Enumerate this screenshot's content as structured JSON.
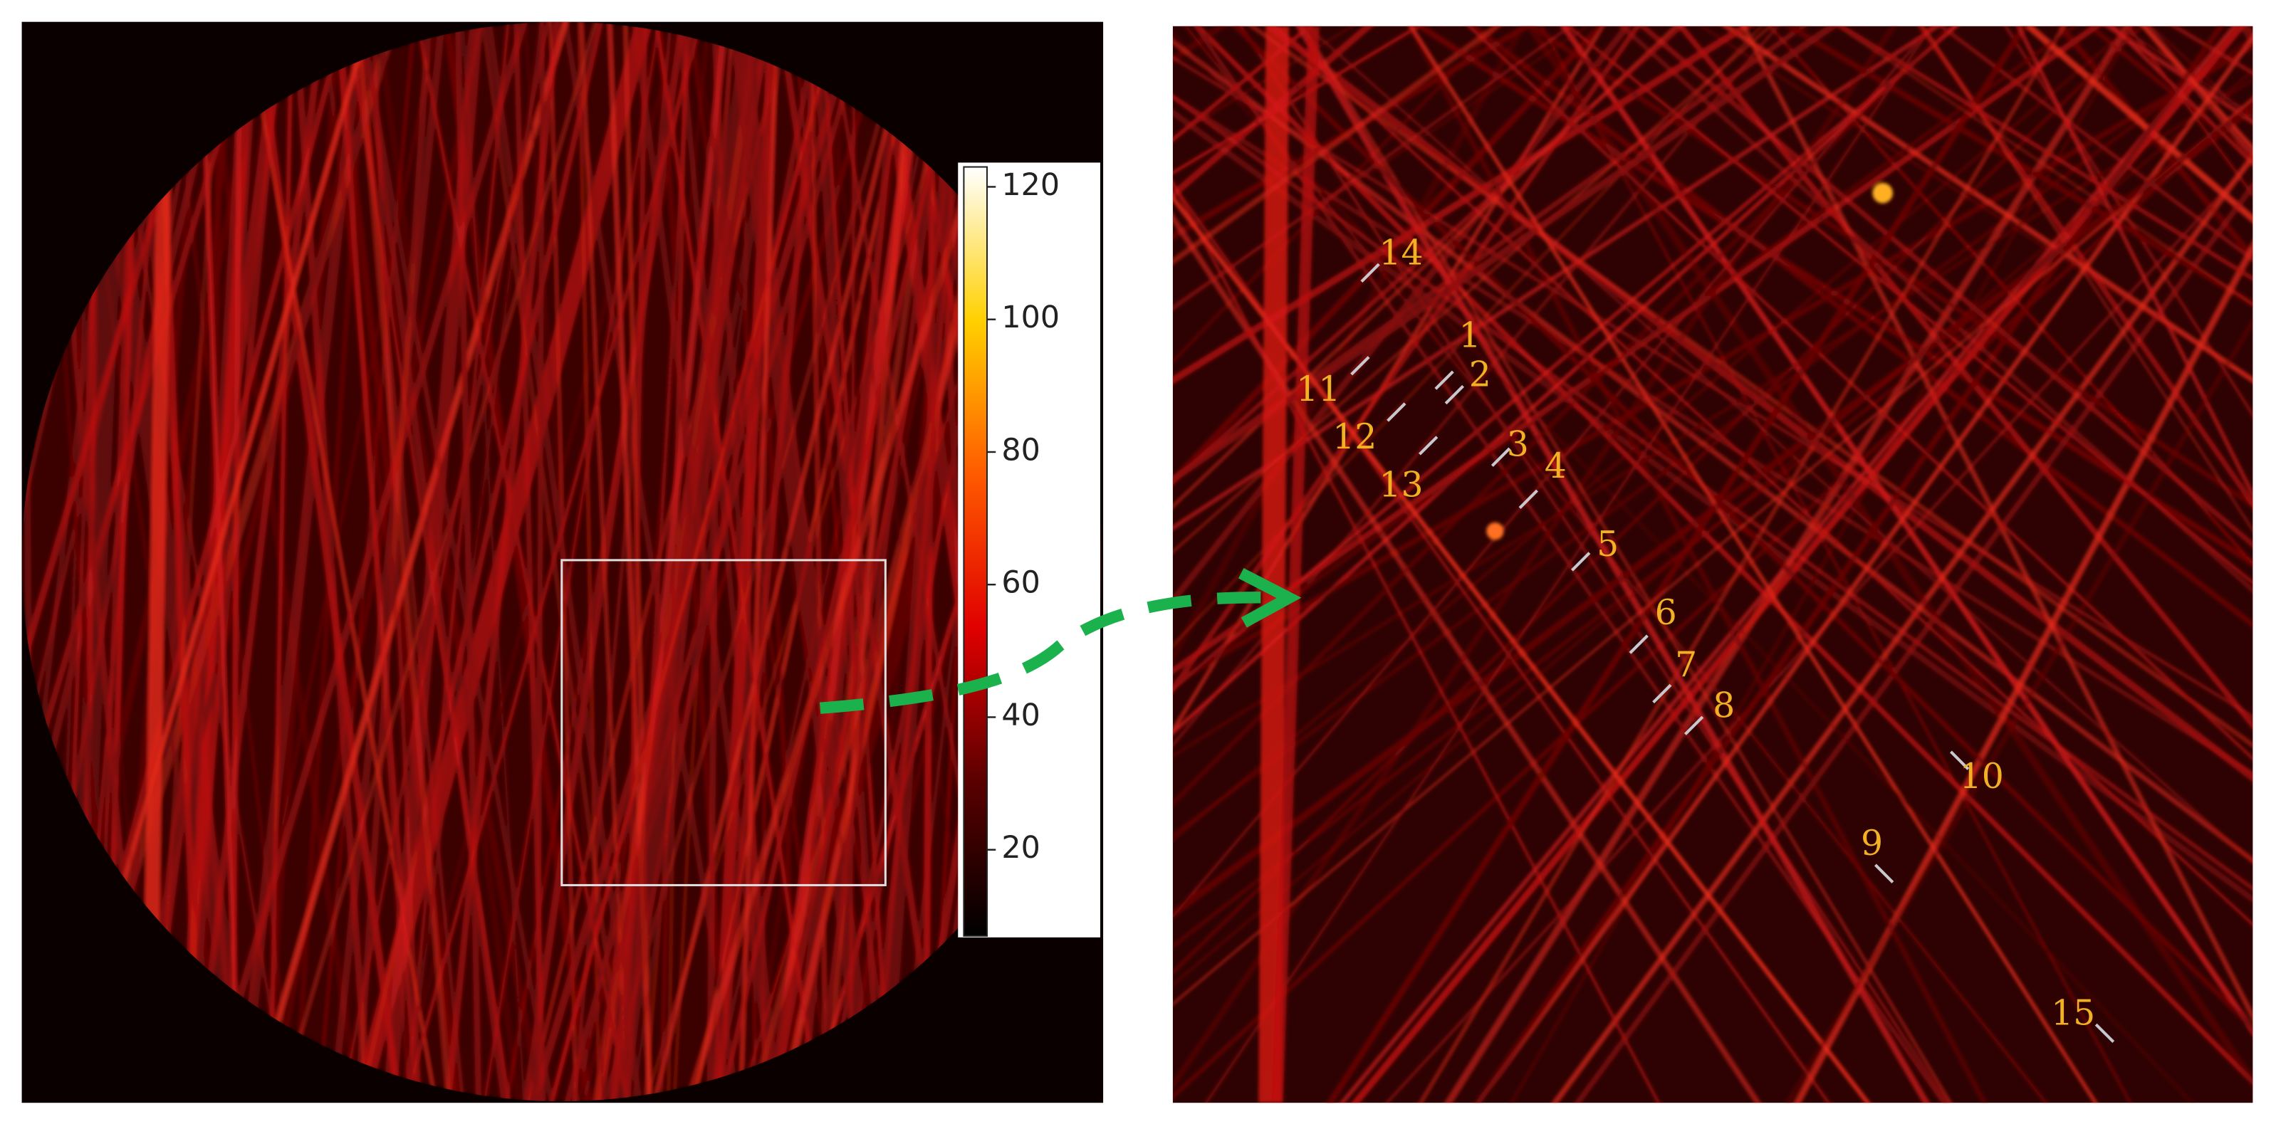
{
  "colorbar": {
    "lim": [
      7,
      123
    ],
    "ticks": [
      20,
      40,
      60,
      80,
      100,
      120
    ]
  },
  "markers": [
    {
      "label": "1"
    },
    {
      "label": "2"
    },
    {
      "label": "3"
    },
    {
      "label": "4"
    },
    {
      "label": "5"
    },
    {
      "label": "6"
    },
    {
      "label": "7"
    },
    {
      "label": "8"
    },
    {
      "label": "9"
    },
    {
      "label": "10"
    },
    {
      "label": "11"
    },
    {
      "label": "12"
    },
    {
      "label": "13"
    },
    {
      "label": "14"
    },
    {
      "label": "15"
    }
  ]
}
